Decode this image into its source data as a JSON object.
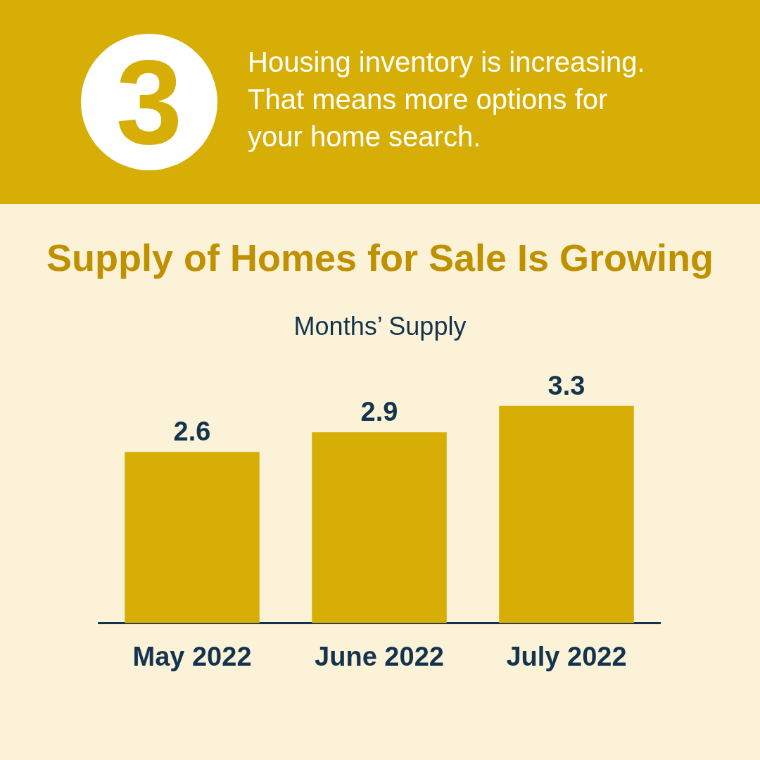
{
  "chart_data": {
    "type": "bar",
    "title": "Supply of Homes for Sale Is Growing",
    "subtitle": "Months’ Supply",
    "annotations": [
      "3",
      "Housing inventory is increasing. That means more options for your home search."
    ],
    "categories": [
      "May 2022",
      "June 2022",
      "July 2022"
    ],
    "values": [
      2.6,
      2.9,
      3.3
    ],
    "color": "#d6ae05",
    "data_labels": true
  }
}
